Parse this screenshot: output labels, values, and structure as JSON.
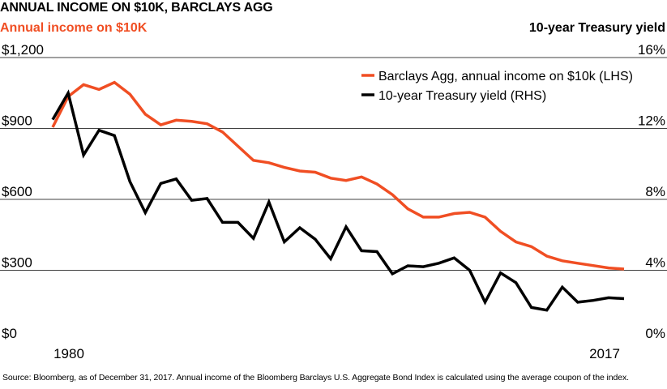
{
  "chart_data": {
    "type": "line",
    "title": "ANNUAL INCOME ON $10K, BARCLAYS AGG",
    "ylabel_left": "Annual income on $10K",
    "ylabel_right": "10-year Treasury yield",
    "x_ticks": [
      "1980",
      "2017"
    ],
    "y_left_ticks": [
      "$1,200",
      "$900",
      "$600",
      "$300",
      "$0"
    ],
    "y_right_ticks": [
      "16%",
      "12%",
      "8%",
      "4%",
      "0%"
    ],
    "ylim_left": [
      0,
      1200
    ],
    "ylim_right": [
      0,
      16
    ],
    "xlim": [
      1980,
      2017
    ],
    "grid": "horizontal",
    "legend_position": "top-right",
    "colors": {
      "lhs": "#f04e23",
      "rhs": "#000000",
      "grid": "#000000"
    },
    "series": [
      {
        "name": "Barclays Agg, annual income on $10k (LHS)",
        "axis": "left",
        "x": [
          1980,
          1981,
          1982,
          1983,
          1984,
          1985,
          1986,
          1987,
          1988,
          1989,
          1990,
          1991,
          1992,
          1993,
          1994,
          1995,
          1996,
          1997,
          1998,
          1999,
          2000,
          2001,
          2002,
          2003,
          2004,
          2005,
          2006,
          2007,
          2008,
          2009,
          2010,
          2011,
          2012,
          2013,
          2014,
          2015,
          2016,
          2017
        ],
        "values": [
          905,
          1035,
          1085,
          1065,
          1095,
          1045,
          960,
          915,
          935,
          930,
          920,
          885,
          825,
          765,
          755,
          735,
          720,
          715,
          690,
          680,
          695,
          665,
          620,
          560,
          525,
          525,
          540,
          545,
          525,
          465,
          420,
          400,
          360,
          340,
          330,
          320,
          310,
          305
        ]
      },
      {
        "name": "10-year Treasury yield (RHS)",
        "axis": "right",
        "x": [
          1980,
          1981,
          1982,
          1983,
          1984,
          1985,
          1986,
          1987,
          1988,
          1989,
          1990,
          1991,
          1992,
          1993,
          1994,
          1995,
          1996,
          1997,
          1998,
          1999,
          2000,
          2001,
          2002,
          2003,
          2004,
          2005,
          2006,
          2007,
          2008,
          2009,
          2010,
          2011,
          2012,
          2013,
          2014,
          2015,
          2016,
          2017
        ],
        "values": [
          12.5,
          14.0,
          10.5,
          11.9,
          11.6,
          9.0,
          7.25,
          8.9,
          9.15,
          7.95,
          8.05,
          6.7,
          6.7,
          5.8,
          7.85,
          5.6,
          6.4,
          5.75,
          4.65,
          6.45,
          5.1,
          5.05,
          3.8,
          4.25,
          4.2,
          4.4,
          4.7,
          4.0,
          2.2,
          3.85,
          3.3,
          1.9,
          1.75,
          3.05,
          2.2,
          2.3,
          2.45,
          2.4
        ]
      }
    ]
  },
  "source_note": "Source: Bloomberg, as of December 31, 2017. Annual income of the Bloomberg Barclays U.S. Aggregate Bond Index is calculated using the average coupon of the index."
}
